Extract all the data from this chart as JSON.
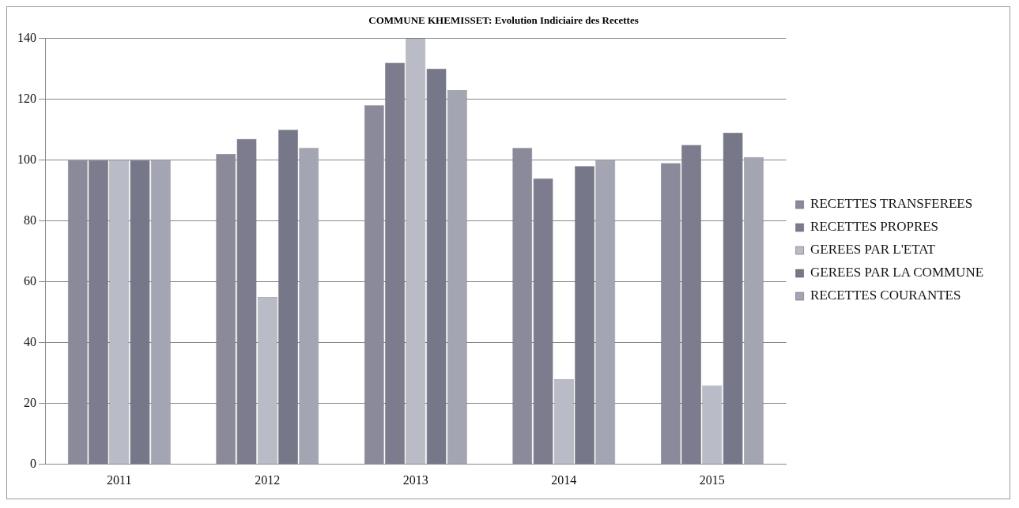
{
  "chart_data": {
    "type": "bar",
    "title": "COMMUNE KHEMISSET: Evolution Indiciaire des Recettes",
    "categories": [
      "2011",
      "2012",
      "2013",
      "2014",
      "2015"
    ],
    "series": [
      {
        "name": "RECETTES TRANSFEREES",
        "color": "#8a8a9a",
        "values": [
          100,
          102,
          118,
          104,
          99
        ]
      },
      {
        "name": "RECETTES PROPRES",
        "color": "#7c7c8e",
        "values": [
          100,
          107,
          132,
          94,
          105
        ]
      },
      {
        "name": "GEREES PAR L'ETAT",
        "color": "#b9bcc6",
        "values": [
          100,
          55,
          140,
          28,
          26
        ]
      },
      {
        "name": "GEREES PAR LA COMMUNE",
        "color": "#76788a",
        "values": [
          100,
          110,
          130,
          98,
          109
        ]
      },
      {
        "name": "RECETTES COURANTES",
        "color": "#a4a5b2",
        "values": [
          100,
          104,
          123,
          100,
          101
        ]
      }
    ],
    "ylim": [
      0,
      140
    ],
    "yticks": [
      0,
      20,
      40,
      60,
      80,
      100,
      120,
      140
    ],
    "grid": "y",
    "legend": "right"
  }
}
